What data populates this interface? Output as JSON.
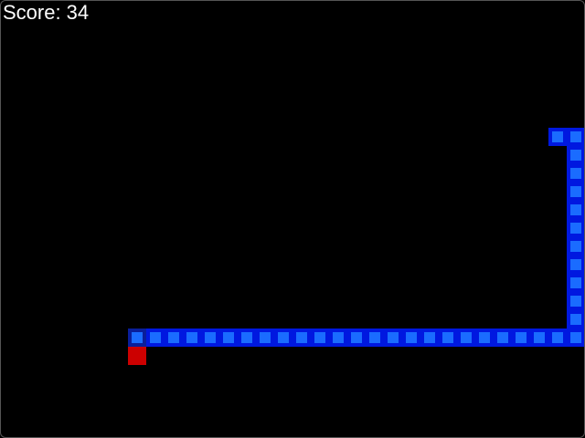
{
  "score": {
    "label": "Score:",
    "value": 34
  },
  "grid": {
    "columns": 32,
    "rows": 24
  },
  "snake": [
    [
      7,
      18
    ],
    [
      8,
      18
    ],
    [
      9,
      18
    ],
    [
      10,
      18
    ],
    [
      11,
      18
    ],
    [
      12,
      18
    ],
    [
      13,
      18
    ],
    [
      14,
      18
    ],
    [
      15,
      18
    ],
    [
      16,
      18
    ],
    [
      17,
      18
    ],
    [
      18,
      18
    ],
    [
      19,
      18
    ],
    [
      20,
      18
    ],
    [
      21,
      18
    ],
    [
      22,
      18
    ],
    [
      23,
      18
    ],
    [
      24,
      18
    ],
    [
      25,
      18
    ],
    [
      26,
      18
    ],
    [
      27,
      18
    ],
    [
      28,
      18
    ],
    [
      29,
      18
    ],
    [
      30,
      18
    ],
    [
      31,
      18
    ],
    [
      31,
      17
    ],
    [
      31,
      16
    ],
    [
      31,
      15
    ],
    [
      31,
      14
    ],
    [
      31,
      13
    ],
    [
      31,
      12
    ],
    [
      31,
      11
    ],
    [
      31,
      10
    ],
    [
      31,
      9
    ],
    [
      31,
      8
    ],
    [
      31,
      7
    ],
    [
      30,
      7
    ]
  ],
  "food": [
    7,
    19
  ]
}
